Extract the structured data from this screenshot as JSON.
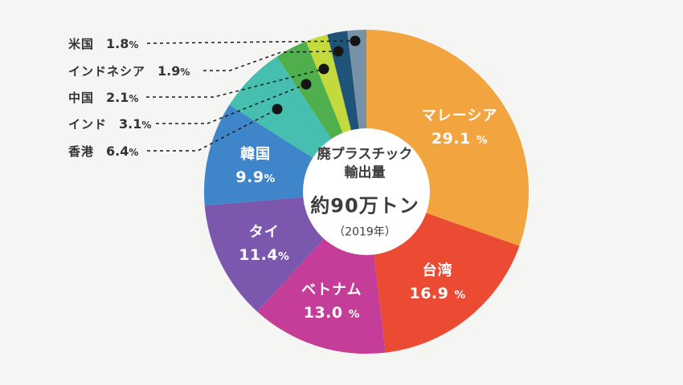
{
  "chart_data": {
    "type": "donut",
    "title": "廃プラスチック輸出量 約90万トン（2019年）",
    "legend_position": "left-callouts",
    "unit": "%",
    "center": {
      "title_line1": "廃プラスチック",
      "title_line2": "輸出量",
      "amount": "約90万トン",
      "year": "（2019年）"
    },
    "slices": [
      {
        "id": "malaysia",
        "name": "マレーシア",
        "value": 29.1,
        "pct_display": "29.1 %",
        "color": "#F2A43E",
        "label_inside": true
      },
      {
        "id": "taiwan",
        "name": "台湾",
        "value": 16.9,
        "pct_display": "16.9 %",
        "color": "#EB4A33",
        "label_inside": true
      },
      {
        "id": "vietnam",
        "name": "ベトナム",
        "value": 13.0,
        "pct_display": "13.0 %",
        "color": "#C43D98",
        "label_inside": true
      },
      {
        "id": "thailand",
        "name": "タイ",
        "value": 11.4,
        "pct_display": "11.4%",
        "color": "#7B57AE",
        "label_inside": true
      },
      {
        "id": "south-korea",
        "name": "韓国",
        "value": 9.9,
        "pct_display": "9.9%",
        "color": "#3E86C9",
        "label_inside": true
      },
      {
        "id": "hong-kong",
        "name": "香港",
        "value": 6.4,
        "pct_display": "6.4%",
        "color": "#46BFB0",
        "label_inside": false
      },
      {
        "id": "india",
        "name": "インド",
        "value": 3.1,
        "pct_display": "3.1%",
        "color": "#4FAF4D",
        "label_inside": false
      },
      {
        "id": "china",
        "name": "中国",
        "value": 2.1,
        "pct_display": "2.1%",
        "color": "#C3D93C",
        "label_inside": false
      },
      {
        "id": "indonesia",
        "name": "インドネシア",
        "value": 1.9,
        "pct_display": "1.9%",
        "color": "#1F5378",
        "label_inside": false
      },
      {
        "id": "usa",
        "name": "米国",
        "value": 1.8,
        "pct_display": "1.8%",
        "color": "#7791A6",
        "label_inside": false
      }
    ],
    "colors": {
      "background": "#F5F5F3",
      "center_text": "#3C3C3C",
      "slice_label_text": "#FFFFFF",
      "legend_text": "#333333",
      "leader_line": "#1A1A1A",
      "leader_dot": "#141414",
      "donut_hole": "#FFFFFF"
    }
  }
}
